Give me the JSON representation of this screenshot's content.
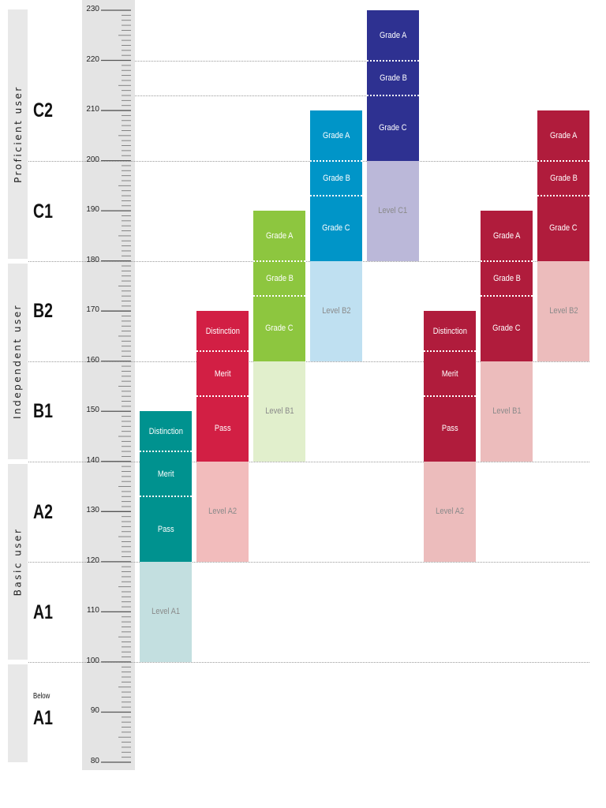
{
  "bands": [
    {
      "label": "Proficient  user"
    },
    {
      "label": "Independent  user"
    },
    {
      "label": "Basic  user"
    }
  ],
  "cefr_levels": {
    "c2": "C2",
    "c1": "C1",
    "b2": "B2",
    "b1": "B1",
    "a2": "A2",
    "a1": "A1",
    "below_small": "Below",
    "below_big": "A1"
  },
  "scale": {
    "min": 80,
    "max": 230,
    "major_ticks": [
      80,
      90,
      100,
      110,
      120,
      130,
      140,
      150,
      160,
      170,
      180,
      190,
      200,
      210,
      220,
      230
    ]
  },
  "columns": [
    {
      "name": "col-1",
      "color": "#00928f",
      "faded_color": "#c3dfe0",
      "cells": [
        {
          "label": "Level A1",
          "from": 100,
          "to": 120,
          "faded": true
        },
        {
          "label": "Pass",
          "from": 120,
          "to": 133
        },
        {
          "label": "Merit",
          "from": 133,
          "to": 142
        },
        {
          "label": "Distinction",
          "from": 142,
          "to": 150
        }
      ]
    },
    {
      "name": "col-2",
      "color": "#d21f44",
      "faded_color": "#f2bcbc",
      "cells": [
        {
          "label": "Level A2",
          "from": 120,
          "to": 140,
          "faded": true
        },
        {
          "label": "Pass",
          "from": 140,
          "to": 153
        },
        {
          "label": "Merit",
          "from": 153,
          "to": 162
        },
        {
          "label": "Distinction",
          "from": 162,
          "to": 170
        }
      ]
    },
    {
      "name": "col-3",
      "color": "#8dc63f",
      "faded_color": "#e1efcc",
      "cells": [
        {
          "label": "Level B1",
          "from": 140,
          "to": 160,
          "faded": true
        },
        {
          "label": "Grade C",
          "from": 160,
          "to": 173
        },
        {
          "label": "Grade B",
          "from": 173,
          "to": 180
        },
        {
          "label": "Grade A",
          "from": 180,
          "to": 190
        }
      ]
    },
    {
      "name": "col-4",
      "color": "#0095c8",
      "faded_color": "#bfe0f1",
      "cells": [
        {
          "label": "Level B2",
          "from": 160,
          "to": 180,
          "faded": true
        },
        {
          "label": "Grade C",
          "from": 180,
          "to": 193
        },
        {
          "label": "Grade B",
          "from": 193,
          "to": 200
        },
        {
          "label": "Grade A",
          "from": 200,
          "to": 210
        }
      ]
    },
    {
      "name": "col-5",
      "color": "#2e3191",
      "faded_color": "#bbb8d9",
      "cells": [
        {
          "label": "Level C1",
          "from": 180,
          "to": 200,
          "faded": true
        },
        {
          "label": "Grade C",
          "from": 200,
          "to": 213
        },
        {
          "label": "Grade B",
          "from": 213,
          "to": 220
        },
        {
          "label": "Grade A",
          "from": 220,
          "to": 230
        }
      ]
    },
    {
      "name": "col-6",
      "color": "#b01c3c",
      "faded_color": "#ecbcbc",
      "cells": [
        {
          "label": "Level A2",
          "from": 120,
          "to": 140,
          "faded": true
        },
        {
          "label": "Pass",
          "from": 140,
          "to": 153
        },
        {
          "label": "Merit",
          "from": 153,
          "to": 162
        },
        {
          "label": "Distinction",
          "from": 162,
          "to": 170
        }
      ]
    },
    {
      "name": "col-7",
      "color": "#b01c3c",
      "faded_color": "#ecbcbc",
      "cells": [
        {
          "label": "Level B1",
          "from": 140,
          "to": 160,
          "faded": true
        },
        {
          "label": "Grade C",
          "from": 160,
          "to": 173
        },
        {
          "label": "Grade B",
          "from": 173,
          "to": 180
        },
        {
          "label": "Grade A",
          "from": 180,
          "to": 190
        }
      ]
    },
    {
      "name": "col-8",
      "color": "#b01c3c",
      "faded_color": "#ecbcbc",
      "cells": [
        {
          "label": "Level B2",
          "from": 160,
          "to": 180,
          "faded": true
        },
        {
          "label": "Grade C",
          "from": 180,
          "to": 193
        },
        {
          "label": "Grade B",
          "from": 193,
          "to": 200
        },
        {
          "label": "Grade A",
          "from": 200,
          "to": 210
        }
      ]
    }
  ]
}
